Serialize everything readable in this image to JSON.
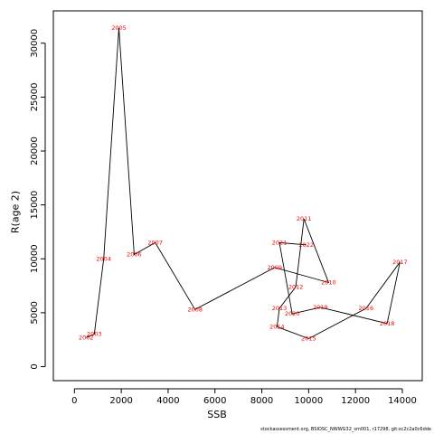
{
  "chart_data": {
    "type": "line",
    "xlabel": "SSB",
    "ylabel": "R(age 2)",
    "xlim": [
      -900,
      14850
    ],
    "ylim": [
      -1300,
      33000
    ],
    "xticks": [
      0,
      2000,
      4000,
      6000,
      8000,
      10000,
      12000,
      14000
    ],
    "yticks": [
      0,
      5000,
      10000,
      15000,
      20000,
      25000,
      30000
    ],
    "grid": false,
    "line_color": "#000000",
    "label_color": "#ff0000",
    "points": [
      {
        "year": "2002",
        "x": 500,
        "y": 2700
      },
      {
        "year": "2003",
        "x": 850,
        "y": 3000
      },
      {
        "year": "2004",
        "x": 1250,
        "y": 10000
      },
      {
        "year": "2005",
        "x": 1900,
        "y": 31400
      },
      {
        "year": "2006",
        "x": 2550,
        "y": 10400
      },
      {
        "year": "2007",
        "x": 3450,
        "y": 11500
      },
      {
        "year": "2008",
        "x": 5150,
        "y": 5300
      },
      {
        "year": "2009",
        "x": 8550,
        "y": 9200
      },
      {
        "year": "2010",
        "x": 10850,
        "y": 7800
      },
      {
        "year": "2011",
        "x": 9800,
        "y": 13700
      },
      {
        "year": "2012",
        "x": 9450,
        "y": 7400
      },
      {
        "year": "2013",
        "x": 8750,
        "y": 5400
      },
      {
        "year": "2014",
        "x": 8650,
        "y": 3700
      },
      {
        "year": "2015",
        "x": 10000,
        "y": 2600
      },
      {
        "year": "2016",
        "x": 12450,
        "y": 5400
      },
      {
        "year": "2017",
        "x": 13900,
        "y": 9700
      },
      {
        "year": "2018",
        "x": 13350,
        "y": 4000
      },
      {
        "year": "2019",
        "x": 10500,
        "y": 5500
      },
      {
        "year": "2020",
        "x": 9300,
        "y": 4900
      },
      {
        "year": "2021",
        "x": 8750,
        "y": 11500
      },
      {
        "year": "2022",
        "x": 9900,
        "y": 11300
      }
    ]
  },
  "footnote": "stockassessment.org, BSIOSC_NWWG32_sm001, r17298, git:sc2c2a0c6dde"
}
